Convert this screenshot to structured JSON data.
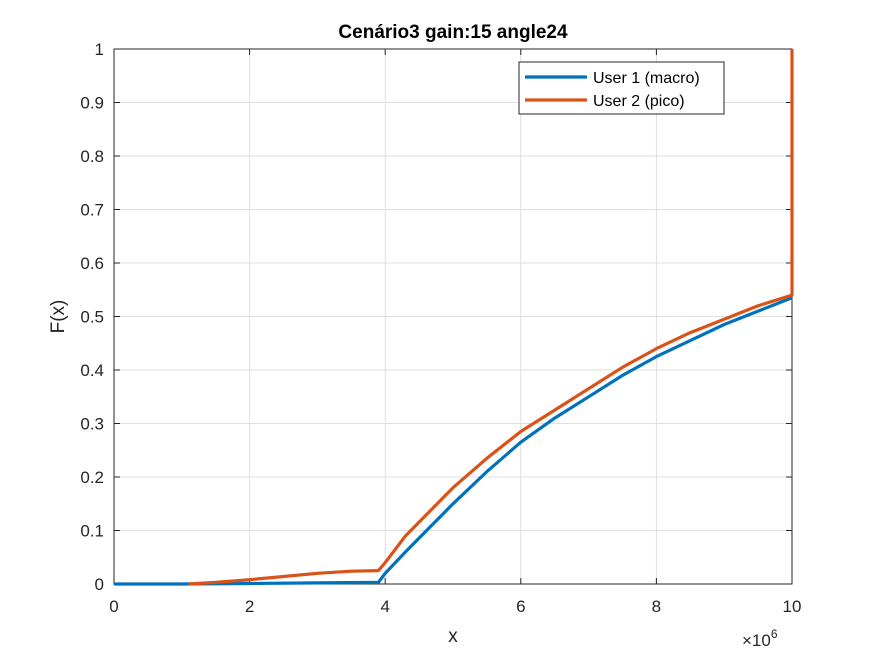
{
  "chart_data": {
    "type": "line",
    "title": "Cenário3 gain:15 angle24",
    "xlabel": "x",
    "ylabel": "F(x)",
    "xlim": [
      0,
      10000000
    ],
    "ylim": [
      0,
      1
    ],
    "x_exponent_label": "×10",
    "x_exponent_power": "6",
    "x_ticks": [
      0,
      2000000,
      4000000,
      6000000,
      8000000,
      10000000
    ],
    "x_tick_labels": [
      "0",
      "2",
      "4",
      "6",
      "8",
      "10"
    ],
    "y_ticks": [
      0,
      0.1,
      0.2,
      0.3,
      0.4,
      0.5,
      0.6,
      0.7,
      0.8,
      0.9,
      1
    ],
    "y_tick_labels": [
      "0",
      "0.1",
      "0.2",
      "0.3",
      "0.4",
      "0.5",
      "0.6",
      "0.7",
      "0.8",
      "0.9",
      "1"
    ],
    "grid": true,
    "legend_position": "top-right",
    "series": [
      {
        "name": "User 1 (macro)",
        "color": "#0072BD",
        "x": [
          0,
          1000000,
          2000000,
          3000000,
          3900000,
          4000000,
          4300000,
          5000000,
          5500000,
          6000000,
          6500000,
          7000000,
          7500000,
          8000000,
          8500000,
          9000000,
          9500000,
          10000000
        ],
        "y": [
          0,
          0,
          0.001,
          0.002,
          0.003,
          0.02,
          0.06,
          0.15,
          0.21,
          0.265,
          0.31,
          0.35,
          0.39,
          0.425,
          0.455,
          0.485,
          0.51,
          0.535
        ]
      },
      {
        "name": "User 2 (pico)",
        "color": "#D95319",
        "x": [
          1100000,
          1500000,
          2000000,
          2500000,
          3000000,
          3500000,
          3900000,
          4000000,
          4300000,
          5000000,
          5500000,
          6000000,
          6500000,
          7000000,
          7500000,
          8000000,
          8500000,
          9000000,
          9500000,
          10000000,
          10000000
        ],
        "y": [
          0,
          0.003,
          0.008,
          0.014,
          0.02,
          0.024,
          0.025,
          0.04,
          0.09,
          0.18,
          0.235,
          0.285,
          0.325,
          0.365,
          0.405,
          0.44,
          0.47,
          0.495,
          0.52,
          0.54,
          1
        ]
      }
    ]
  }
}
